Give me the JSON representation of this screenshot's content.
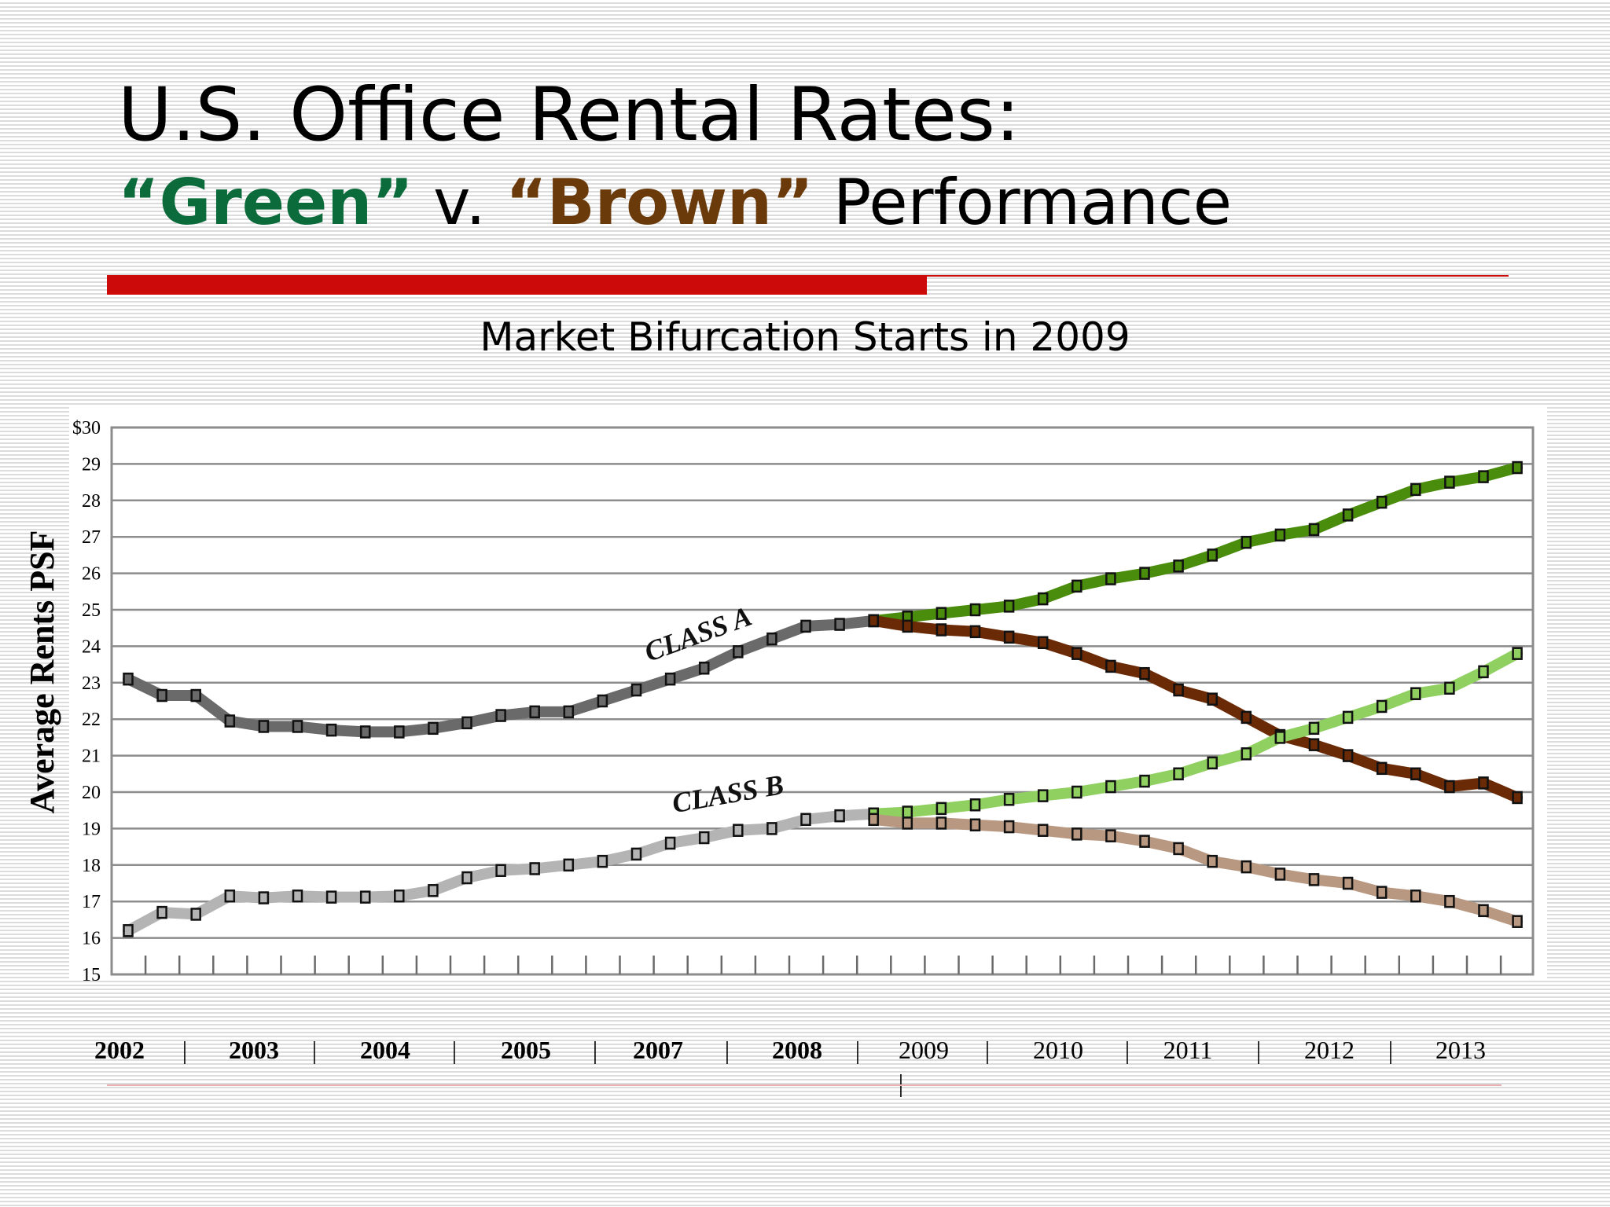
{
  "title": {
    "line1": "U.S. Office Rental Rates:",
    "green_word": "“Green”",
    "versus": " v. ",
    "brown_word": "“Brown”",
    "rest": " Performance"
  },
  "colors": {
    "green_title": "#0b6b3a",
    "brown_title": "#6b3a0a",
    "accent_red": "#cc0a0a"
  },
  "chart_data": {
    "type": "line",
    "title": "Market Bifurcation Starts in 2009",
    "ylabel": "Average Rents PSF",
    "xlabel": "",
    "ylim": [
      15,
      30
    ],
    "yticks": [
      "$30",
      "29",
      "28",
      "27",
      "26",
      "25",
      "24",
      "23",
      "22",
      "21",
      "20",
      "19",
      "18",
      "17",
      "16",
      "15"
    ],
    "year_labels": [
      "2002",
      "2003",
      "2004",
      "2005",
      "2007",
      "2008",
      "2009",
      "2010",
      "2011",
      "2012",
      "2013"
    ],
    "year_separator": "|",
    "grid": true,
    "points_per_year": 4,
    "series": [
      {
        "name": "CLASS A",
        "color": "#6a6a6a",
        "values": [
          23.1,
          22.65,
          22.65,
          21.95,
          21.8,
          21.8,
          21.7,
          21.65,
          21.65,
          21.75,
          21.9,
          22.1,
          22.2,
          22.2,
          22.5,
          22.8,
          23.1,
          23.4,
          23.85,
          24.2,
          24.55,
          24.6,
          24.7
        ]
      },
      {
        "name": "",
        "color": "#4a8c0c",
        "values": [
          24.7,
          24.8,
          24.9,
          25.0,
          25.1,
          25.3,
          25.65,
          25.85,
          26.0,
          26.2,
          26.5,
          26.85,
          27.05,
          27.2,
          27.6,
          27.95,
          28.3,
          28.5,
          28.65,
          28.9
        ]
      },
      {
        "name": "",
        "color": "#6b2a06",
        "values": [
          24.7,
          24.55,
          24.45,
          24.4,
          24.25,
          24.1,
          23.8,
          23.45,
          23.25,
          22.8,
          22.55,
          22.05,
          21.55,
          21.3,
          21.0,
          20.65,
          20.5,
          20.15,
          20.25,
          19.85
        ]
      },
      {
        "name": "CLASS B",
        "color": "#b4b4b4",
        "values": [
          16.2,
          16.7,
          16.65,
          17.15,
          17.1,
          17.15,
          17.12,
          17.12,
          17.15,
          17.3,
          17.65,
          17.85,
          17.9,
          18.0,
          18.1,
          18.3,
          18.6,
          18.75,
          18.95,
          19.0,
          19.25,
          19.35,
          19.4
        ]
      },
      {
        "name": "",
        "color": "#8fd060",
        "values": [
          19.4,
          19.45,
          19.55,
          19.65,
          19.8,
          19.9,
          20.0,
          20.15,
          20.3,
          20.5,
          20.8,
          21.05,
          21.5,
          21.75,
          22.05,
          22.35,
          22.7,
          22.85,
          23.3,
          23.8
        ]
      },
      {
        "name": "",
        "color": "#b89880",
        "values": [
          19.25,
          19.15,
          19.15,
          19.1,
          19.05,
          18.95,
          18.85,
          18.8,
          18.65,
          18.45,
          18.1,
          17.95,
          17.75,
          17.6,
          17.5,
          17.25,
          17.15,
          17.0,
          16.75,
          16.45
        ]
      }
    ]
  }
}
